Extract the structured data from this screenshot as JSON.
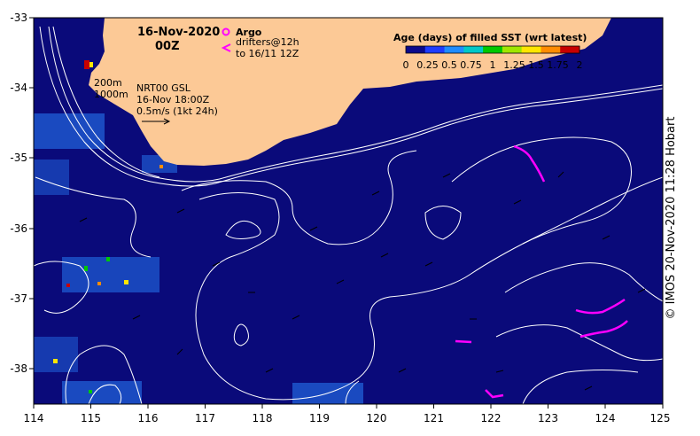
{
  "title": {
    "date": "16-Nov-2020",
    "time": "00Z"
  },
  "legend_argo": {
    "label": "Argo",
    "marker_color": "#ff00ff"
  },
  "legend_drifters": {
    "line1": "drifters@12h",
    "line2": "to 16/11 12Z",
    "marker_color": "#ff00ff"
  },
  "isobaths": {
    "label1": "200m",
    "label2": "1000m"
  },
  "product": {
    "line1": "NRT00 GSL",
    "line2": "16-Nov 18:00Z",
    "line3": "0.5m/s (1kt 24h)"
  },
  "colorbar": {
    "title": "Age (days) of filled SST (wrt latest)",
    "ticks": [
      "0",
      "0.25",
      "0.5",
      "0.75",
      "1",
      "1.25",
      "1.5",
      "1.75",
      "2"
    ],
    "colors": [
      "#0a0a8c",
      "#1e3cff",
      "#1e8cff",
      "#00c8c8",
      "#00c800",
      "#a0e600",
      "#ffe600",
      "#ff8c00",
      "#c80000"
    ]
  },
  "axes": {
    "x_ticks": [
      "114",
      "115",
      "116",
      "117",
      "118",
      "119",
      "120",
      "121",
      "122",
      "123",
      "124",
      "125"
    ],
    "y_ticks": [
      "-33",
      "-34",
      "-35",
      "-36",
      "-37",
      "-38"
    ],
    "lon_range": [
      114,
      125
    ],
    "lat_range": [
      -38.5,
      -33
    ]
  },
  "colors": {
    "ocean": "#0a0a7a",
    "land": "#fcc996",
    "contour": "#ffffff",
    "arrows": "#000000",
    "drifter": "#ff00ff"
  },
  "credit": "© IMOS 20-Nov-2020 11:28 Hobart"
}
